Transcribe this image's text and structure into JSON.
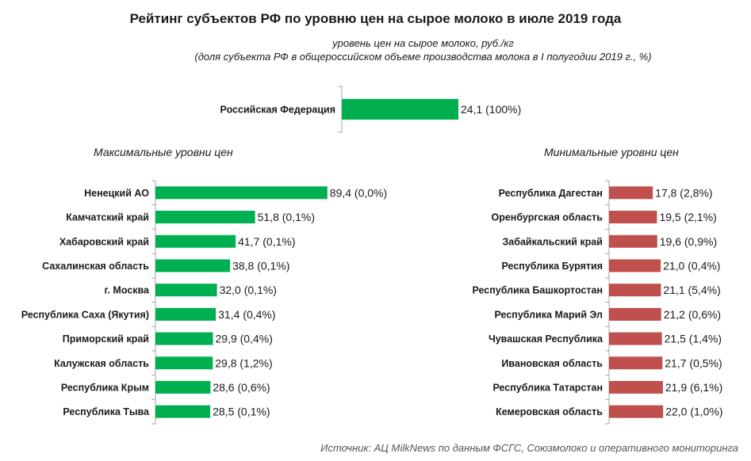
{
  "chart_data": {
    "type": "bar",
    "title": "Рейтинг субъектов РФ по уровню цен на сырое молоко в июле 2019 года",
    "subtitle": "уровень цен на сырое молоко, руб./кг",
    "subtitle2": "(доля субъекта РФ в общероссийском объеме производства молока в I полугодии 2019 г., %)",
    "source": "Источник:   АЦ MilkNews по данным ФСГС, Союзмолоко и оперативного мониторинга",
    "colors": {
      "max": "#00b050",
      "min": "#c0504d",
      "total": "#00b050",
      "axis": "#a6a6a6"
    },
    "total": {
      "categories": [
        "Российская Федерация"
      ],
      "values": [
        24.1
      ],
      "labels": [
        "24,1 (100%)"
      ]
    },
    "max": {
      "title": "Максимальные уровни цен",
      "categories": [
        "Ненецкий АО",
        "Камчатский край",
        "Хабаровский край",
        "Сахалинская область",
        "г. Москва",
        "Республика Саха (Якутия)",
        "Приморский край",
        "Калужская область",
        "Республика Крым",
        "Республика Тыва"
      ],
      "values": [
        89.4,
        51.8,
        41.7,
        38.8,
        32.0,
        31.4,
        29.9,
        29.8,
        28.6,
        28.5
      ],
      "labels": [
        "89,4 (0,0%)",
        "51,8 (0,1%)",
        "41,7 (0,1%)",
        "38,8 (0,1%)",
        "32,0 (0,1%)",
        "31,4 (0,4%)",
        "29,9 (0,4%)",
        "29,8 (1,2%)",
        "28,6 (0,6%)",
        "28,5 (0,1%)"
      ]
    },
    "min": {
      "title": "Минимальные уровни цен",
      "categories": [
        "Республика Дагестан",
        "Оренбургская область",
        "Забайкальский край",
        "Республика Бурятия",
        "Республика Башкортостан",
        "Республика Марий Эл",
        "Чувашская Республика",
        "Ивановская область",
        "Республика Татарстан",
        "Кемеровская область"
      ],
      "values": [
        17.8,
        19.5,
        19.6,
        21.0,
        21.1,
        21.2,
        21.5,
        21.7,
        21.9,
        22.0
      ],
      "labels": [
        "17,8 (2,8%)",
        "19,5 (2,1%)",
        "19,6 (0,9%)",
        "21,0 (0,4%)",
        "21,1 (5,4%)",
        "21,2 (0,6%)",
        "21,5 (1,4%)",
        "21,7 (0,5%)",
        "21,9 (6,1%)",
        "22,0 (1,0%)"
      ]
    }
  }
}
